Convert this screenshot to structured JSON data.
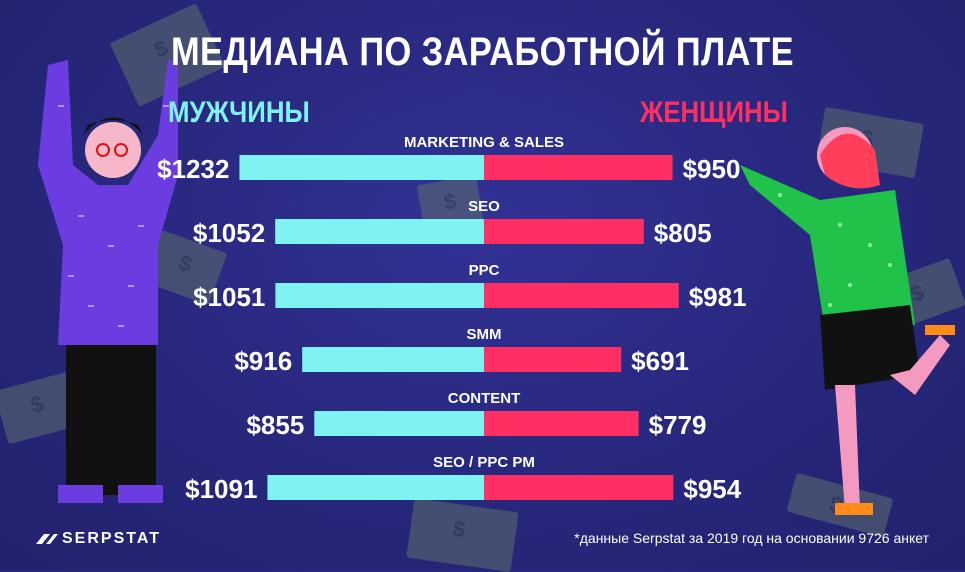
{
  "header": {
    "title": "МЕДИАНА ПО ЗАРАБОТНОЙ ПЛАТЕ"
  },
  "legend": {
    "men": "МУЖЧИНЫ",
    "women": "ЖЕНЩИНЫ"
  },
  "footer": {
    "brand": "SERPSTAT",
    "note": "*данные Serpstat за 2019 год на основании 9726 анкет"
  },
  "colors": {
    "men": "#7ff2f2",
    "women": "#ff2e63",
    "background": "#2a2a86"
  },
  "chart_data": {
    "type": "bar",
    "orientation": "diverging-horizontal",
    "categories": [
      "MARKETING & SALES",
      "SEO",
      "PPC",
      "SMM",
      "CONTENT",
      "SEO / PPC PM"
    ],
    "series": [
      {
        "name": "МУЖЧИНЫ",
        "values": [
          1232,
          1052,
          1051,
          916,
          855,
          1091
        ],
        "labels": [
          "$1232",
          "$1052",
          "$1051",
          "$916",
          "$855",
          "$1091"
        ]
      },
      {
        "name": "ЖЕНЩИНЫ",
        "values": [
          950,
          805,
          981,
          691,
          779,
          954
        ],
        "labels": [
          "$950",
          "$805",
          "$981",
          "$691",
          "$779",
          "$954"
        ]
      }
    ]
  }
}
